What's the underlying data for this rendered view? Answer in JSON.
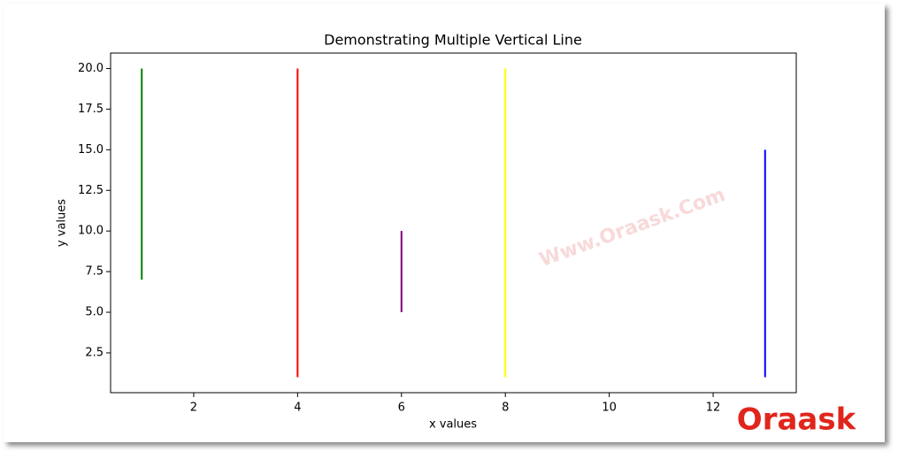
{
  "chart_data": {
    "type": "vlines",
    "title": "Demonstrating Multiple Vertical Line",
    "xlabel": "x values",
    "ylabel": "y values",
    "segments": [
      {
        "x": 1,
        "ymin": 7,
        "ymax": 20,
        "color": "green"
      },
      {
        "x": 4,
        "ymin": 1,
        "ymax": 20,
        "color": "red"
      },
      {
        "x": 6,
        "ymin": 5,
        "ymax": 10,
        "color": "purple"
      },
      {
        "x": 8,
        "ymin": 1,
        "ymax": 20,
        "color": "yellow"
      },
      {
        "x": 13,
        "ymin": 1,
        "ymax": 15,
        "color": "blue"
      }
    ],
    "xlim": [
      0.4,
      13.6
    ],
    "xticks": [
      2,
      4,
      6,
      8,
      10,
      12
    ],
    "ylim": [
      0.05,
      20.95
    ],
    "yticks": [
      2.5,
      {
        "value": 5,
        "label": "5.0"
      },
      7.5,
      {
        "value": 10,
        "label": "10.0"
      },
      12.5,
      {
        "value": 15,
        "label": "15.0"
      },
      17.5,
      {
        "value": 20,
        "label": "20.0"
      }
    ]
  },
  "watermark": "Www.Oraask.Com",
  "logo": "Oraask"
}
